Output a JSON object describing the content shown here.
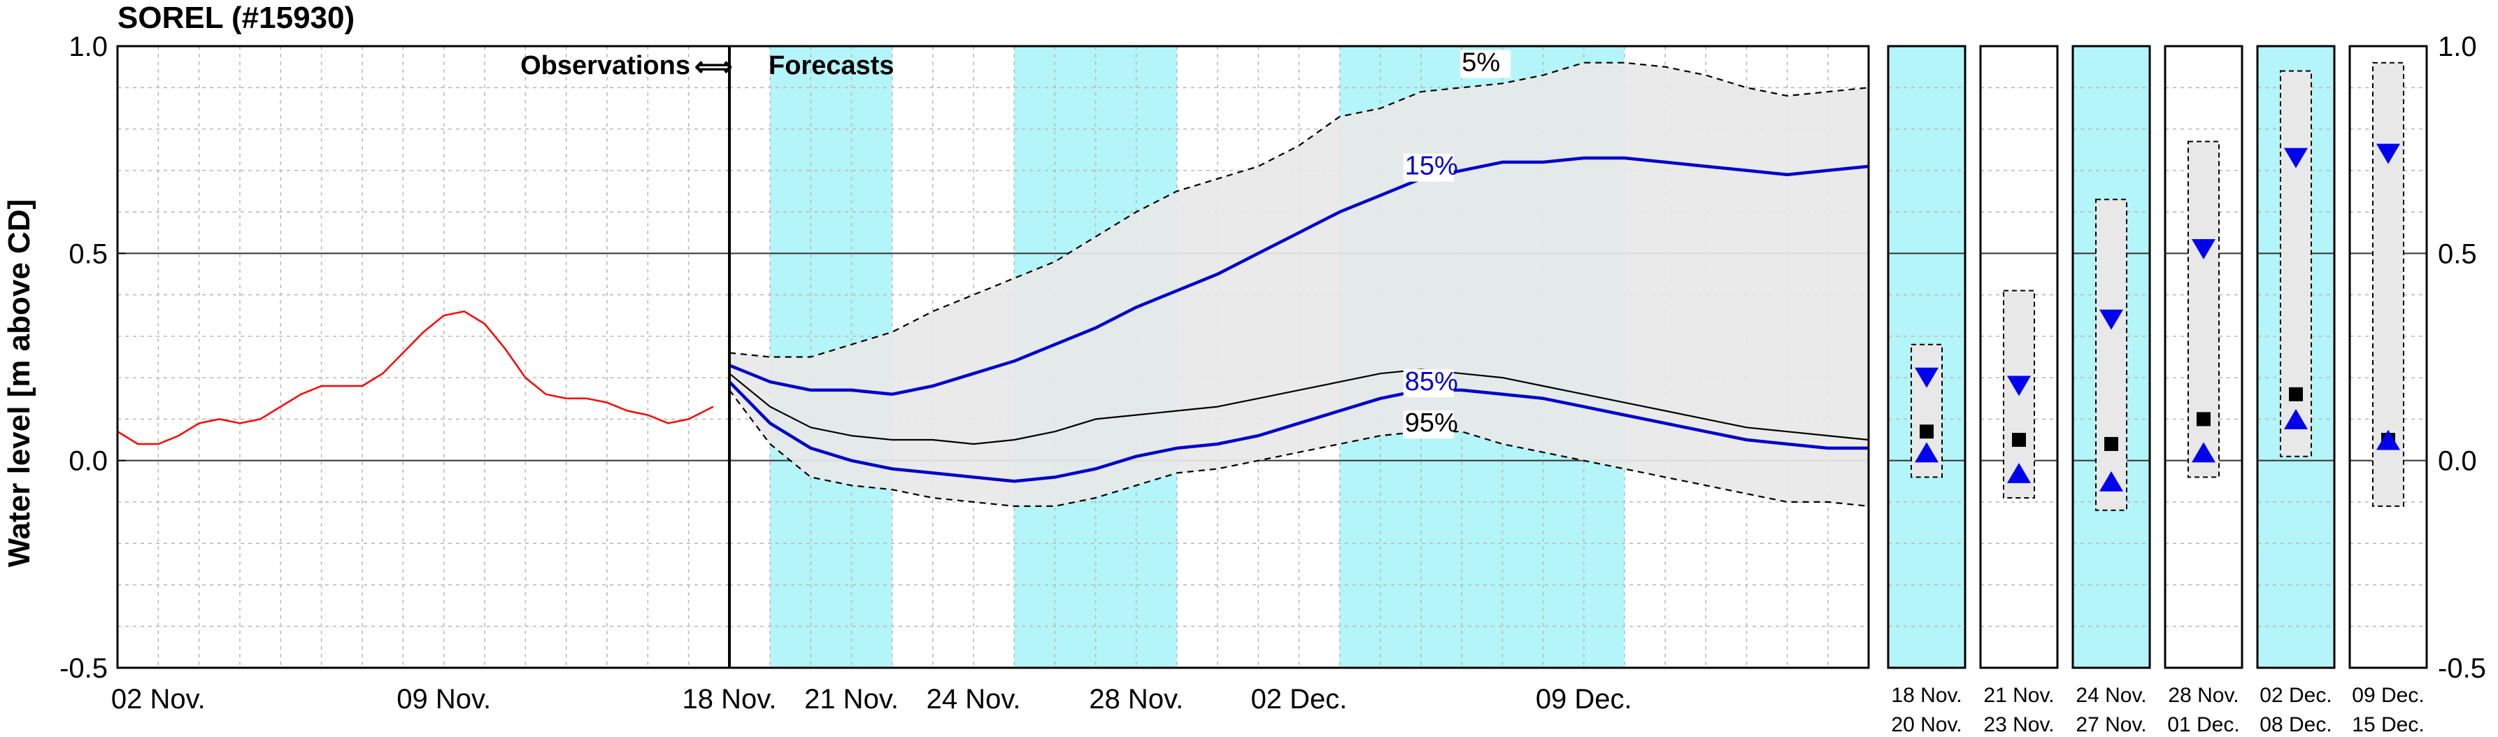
{
  "chart_data": {
    "type": "line",
    "title": "SOREL (#15930)",
    "ylabel": "Water level [m above CD]",
    "ylim": [
      -0.5,
      1.0
    ],
    "yticks": [
      1.0,
      0.5,
      0.0,
      -0.5
    ],
    "ytick_labels": [
      "1.0",
      "0.5",
      "0.0",
      "-0.5"
    ],
    "grid": true,
    "transition_label": {
      "left": "Observations",
      "arrow": "⟺",
      "right": "Forecasts"
    },
    "observations": {
      "x_range_days": [
        1,
        16
      ],
      "xtick_labels": [
        {
          "day": 2,
          "label": "02 Nov."
        },
        {
          "day": 9,
          "label": "09 Nov."
        }
      ],
      "series": [
        {
          "name": "Observations",
          "color": "#ff0000",
          "x": [
            1,
            1.5,
            2,
            2.5,
            3,
            3.5,
            4,
            4.5,
            5,
            5.5,
            6,
            6.5,
            7,
            7.5,
            8,
            8.5,
            9,
            9.5,
            10,
            10.5,
            11,
            11.5,
            12,
            12.5,
            13,
            13.5,
            14,
            14.5,
            15,
            15.6
          ],
          "y": [
            0.07,
            0.04,
            0.04,
            0.06,
            0.09,
            0.1,
            0.09,
            0.1,
            0.13,
            0.16,
            0.18,
            0.18,
            0.18,
            0.21,
            0.26,
            0.31,
            0.35,
            0.36,
            0.33,
            0.27,
            0.2,
            0.16,
            0.15,
            0.15,
            0.14,
            0.12,
            0.11,
            0.09,
            0.1,
            0.13
          ]
        }
      ]
    },
    "forecast": {
      "x_range_days": [
        18,
        46
      ],
      "shaded_bands": [
        [
          19,
          22
        ],
        [
          25,
          29
        ],
        [
          33,
          40
        ]
      ],
      "xtick_labels": [
        {
          "day": 18,
          "label": "18 Nov."
        },
        {
          "day": 21,
          "label": "21 Nov."
        },
        {
          "day": 24,
          "label": "24 Nov."
        },
        {
          "day": 28,
          "label": "28 Nov."
        },
        {
          "day": 32,
          "label": "02 Dec."
        },
        {
          "day": 39,
          "label": "09 Dec."
        }
      ],
      "x": [
        18,
        19,
        20,
        21,
        22,
        23,
        24,
        25,
        26,
        27,
        28,
        29,
        30,
        31,
        32,
        33,
        34,
        35,
        36,
        37,
        38,
        39,
        40,
        41,
        42,
        43,
        44,
        45,
        46
      ],
      "series": [
        {
          "name": "5%",
          "style": "dashed",
          "color": "#000000",
          "y": [
            0.26,
            0.25,
            0.25,
            0.28,
            0.31,
            0.36,
            0.4,
            0.44,
            0.48,
            0.54,
            0.6,
            0.65,
            0.68,
            0.71,
            0.76,
            0.83,
            0.85,
            0.89,
            0.9,
            0.91,
            0.93,
            0.96,
            0.96,
            0.95,
            0.93,
            0.9,
            0.88,
            0.89,
            0.9
          ]
        },
        {
          "name": "15%",
          "style": "solid",
          "color": "#0000cc",
          "y": [
            0.23,
            0.19,
            0.17,
            0.17,
            0.16,
            0.18,
            0.21,
            0.24,
            0.28,
            0.32,
            0.37,
            0.41,
            0.45,
            0.5,
            0.55,
            0.6,
            0.64,
            0.68,
            0.7,
            0.72,
            0.72,
            0.73,
            0.73,
            0.72,
            0.71,
            0.7,
            0.69,
            0.7,
            0.71
          ]
        },
        {
          "name": "median",
          "style": "solid",
          "color": "#000000",
          "y": [
            0.21,
            0.13,
            0.08,
            0.06,
            0.05,
            0.05,
            0.04,
            0.05,
            0.07,
            0.1,
            0.11,
            0.12,
            0.13,
            0.15,
            0.17,
            0.19,
            0.21,
            0.22,
            0.21,
            0.2,
            0.18,
            0.16,
            0.14,
            0.12,
            0.1,
            0.08,
            0.07,
            0.06,
            0.05
          ]
        },
        {
          "name": "85%",
          "style": "solid",
          "color": "#0000cc",
          "y": [
            0.19,
            0.09,
            0.03,
            0.0,
            -0.02,
            -0.03,
            -0.04,
            -0.05,
            -0.04,
            -0.02,
            0.01,
            0.03,
            0.04,
            0.06,
            0.09,
            0.12,
            0.15,
            0.17,
            0.17,
            0.16,
            0.15,
            0.13,
            0.11,
            0.09,
            0.07,
            0.05,
            0.04,
            0.03,
            0.03
          ]
        },
        {
          "name": "95%",
          "style": "dashed",
          "color": "#000000",
          "y": [
            0.17,
            0.04,
            -0.04,
            -0.06,
            -0.07,
            -0.09,
            -0.1,
            -0.11,
            -0.11,
            -0.09,
            -0.06,
            -0.03,
            -0.02,
            0.0,
            0.02,
            0.04,
            0.06,
            0.07,
            0.07,
            0.04,
            0.02,
            0.0,
            -0.02,
            -0.04,
            -0.06,
            -0.08,
            -0.1,
            -0.1,
            -0.11
          ]
        }
      ],
      "percent_labels": [
        {
          "text": "5%",
          "day": 36,
          "y": 0.94,
          "color": "#000000"
        },
        {
          "text": "15%",
          "day": 34.6,
          "y": 0.69,
          "color": "#0000cc"
        },
        {
          "text": "85%",
          "day": 34.6,
          "y": 0.17,
          "color": "#0000cc"
        },
        {
          "text": "95%",
          "day": 34.6,
          "y": 0.07,
          "color": "#000000"
        }
      ]
    },
    "weekly_panels": [
      {
        "top_label": "18 Nov.",
        "bottom_label": "20 Nov.",
        "shaded": true,
        "box": [
          -0.04,
          0.28
        ],
        "upper": 0.2,
        "median": 0.07,
        "lower": 0.02
      },
      {
        "top_label": "21 Nov.",
        "bottom_label": "23 Nov.",
        "shaded": false,
        "box": [
          -0.09,
          0.41
        ],
        "upper": 0.18,
        "median": 0.05,
        "lower": -0.03
      },
      {
        "top_label": "24 Nov.",
        "bottom_label": "27 Nov.",
        "shaded": true,
        "box": [
          -0.12,
          0.63
        ],
        "upper": 0.34,
        "median": 0.04,
        "lower": -0.05
      },
      {
        "top_label": "28 Nov.",
        "bottom_label": "01 Dec.",
        "shaded": false,
        "box": [
          -0.04,
          0.77
        ],
        "upper": 0.51,
        "median": 0.1,
        "lower": 0.02
      },
      {
        "top_label": "02 Dec.",
        "bottom_label": "08 Dec.",
        "shaded": true,
        "box": [
          0.01,
          0.94
        ],
        "upper": 0.73,
        "median": 0.16,
        "lower": 0.1
      },
      {
        "top_label": "09 Dec.",
        "bottom_label": "15 Dec.",
        "shaded": false,
        "box": [
          -0.11,
          0.96
        ],
        "upper": 0.74,
        "median": 0.05,
        "lower": 0.05
      }
    ],
    "colors": {
      "observation": "#ff0000",
      "percentile_blue": "#0000cc",
      "shade_band": "#b3f5f8",
      "envelope_fill": "#e8e8e8",
      "marker_blue": "#0000ee"
    }
  }
}
